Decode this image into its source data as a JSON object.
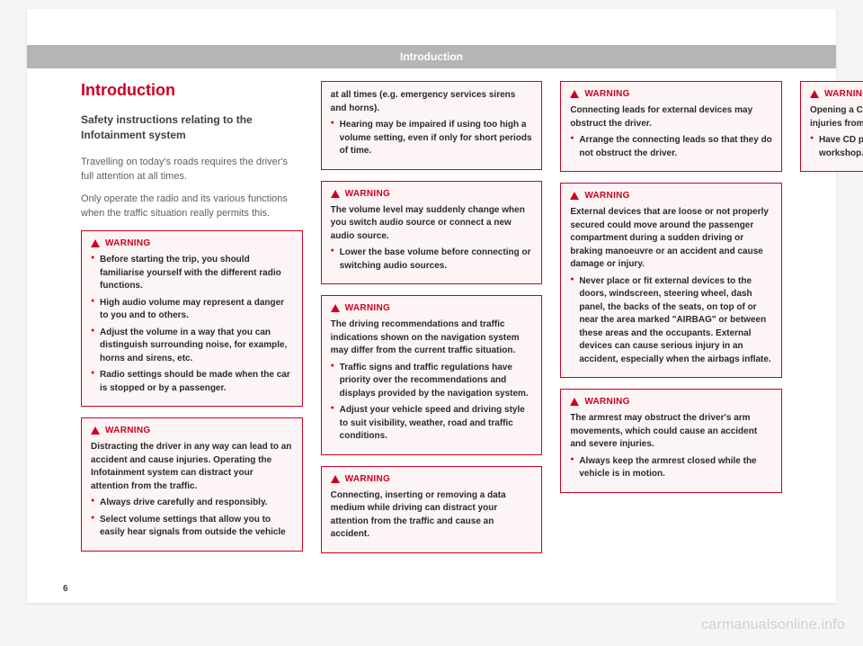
{
  "headerBand": "Introduction",
  "title": "Introduction",
  "subtitle": "Safety instructions relating to the Infotainment system",
  "para1": "Travelling on today's roads requires the driver's full attention at all times.",
  "para2": "Only operate the radio and its various functions when the traffic situation really permits this.",
  "warningLabel": "WARNING",
  "w1": {
    "bullets": [
      "Before starting the trip, you should familiarise yourself with the different radio functions.",
      "High audio volume may represent a danger to you and to others.",
      "Adjust the volume in a way that you can distinguish surrounding noise, for example, horns and sirens, etc.",
      "Radio settings should be made when the car is stopped or by a passenger."
    ]
  },
  "w2": {
    "intro": "Distracting the driver in any way can lead to an accident and cause injuries. Operating the Infotainment system can distract your attention from the traffic.",
    "bullets": [
      "Always drive carefully and responsibly.",
      "Select volume settings that allow you to easily hear signals from outside the vehicle"
    ]
  },
  "w2cont": {
    "intro": "at all times (e.g. emergency services sirens and horns).",
    "bullets": [
      "Hearing may be impaired if using too high a volume setting, even if only for short periods of time."
    ]
  },
  "w3": {
    "intro": "The volume level may suddenly change when you switch audio source or connect a new audio source.",
    "bullets": [
      "Lower the base volume before connecting or switching audio sources."
    ]
  },
  "w4": {
    "intro": "The driving recommendations and traffic indications shown on the navigation system may differ from the current traffic situation.",
    "bullets": [
      "Traffic signs and traffic regulations have priority over the recommendations and displays provided by the navigation system.",
      "Adjust your vehicle speed and driving style to suit visibility, weather, road and traffic conditions."
    ]
  },
  "w5": {
    "intro": "Connecting, inserting or removing a data medium while driving can distract your attention from the traffic and cause an accident."
  },
  "w6": {
    "intro": "Connecting leads for external devices may obstruct the driver.",
    "bullets": [
      "Arrange the connecting leads so that they do not obstruct the driver."
    ]
  },
  "w7": {
    "intro": "External devices that are loose or not properly secured could move around the passenger compartment during a sudden driving or braking manoeuvre or an accident and cause damage or injury.",
    "bullets": [
      "Never place or fit external devices to the doors, windscreen, steering wheel, dash panel, the backs of the seats, on top of or near the area marked \"AIRBAG\" or between these areas and the occupants. External devices can cause serious injury in an accident, especially when the airbags inflate."
    ]
  },
  "w8": {
    "intro": "The armrest may obstruct the driver's arm movements, which could cause an accident and severe injuries.",
    "bullets": [
      "Always keep the armrest closed while the vehicle is in motion."
    ]
  },
  "w9": {
    "intro": "Opening a CD player's housing may lead to injuries from invisible laser radiation.",
    "bullets": [
      "Have CD players repaired only by a qualified workshop."
    ]
  },
  "pageNumber": "6",
  "watermark": "carmanualsonline.info"
}
